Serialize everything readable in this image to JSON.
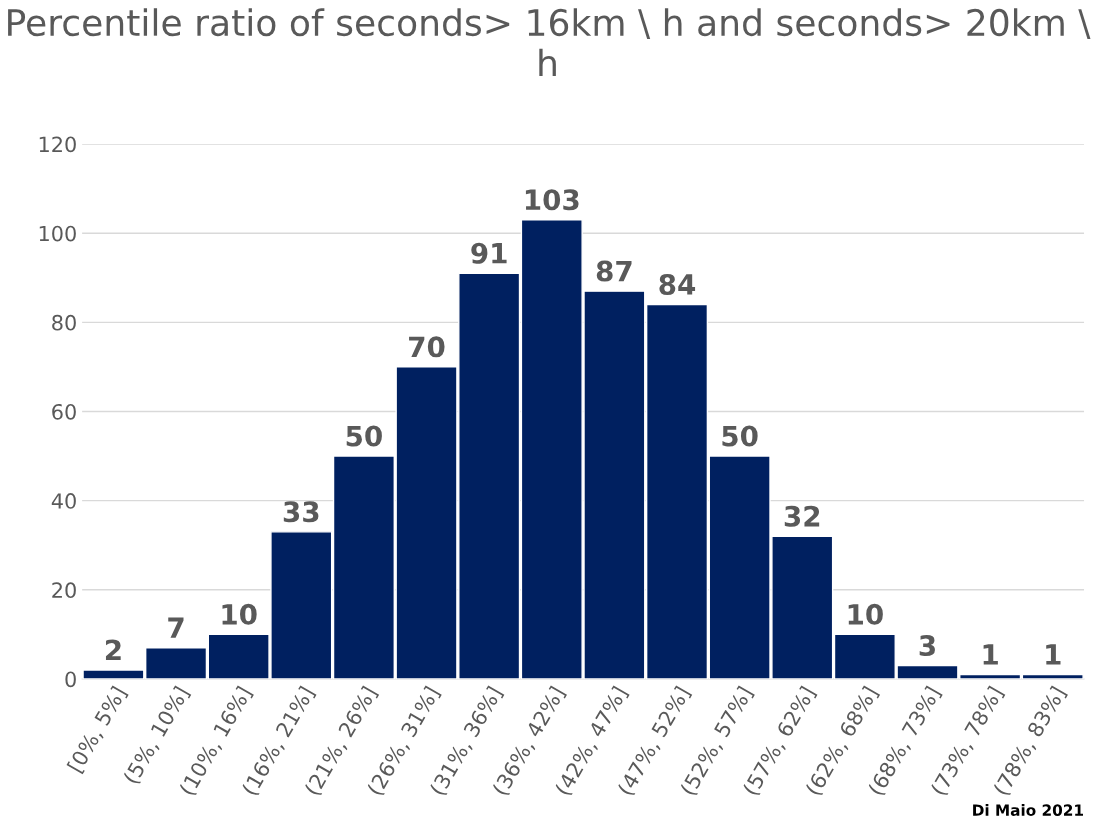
{
  "chart_data": {
    "type": "bar",
    "title": "Percentile ratio of seconds> 16km \\ h and seconds> 20km \\ h",
    "categories": [
      "[0%, 5%]",
      "(5%, 10%]",
      "(10%, 16%]",
      "(16%, 21%]",
      "(21%, 26%]",
      "(26%, 31%]",
      "(31%, 36%]",
      "(36%, 42%]",
      "(42%, 47%]",
      "(47%, 52%]",
      "(52%, 57%]",
      "(57%, 62%]",
      "(62%, 68%]",
      "(68%, 73%]",
      "(73%, 78%]",
      "(78%, 83%]"
    ],
    "values": [
      2,
      7,
      10,
      33,
      50,
      70,
      91,
      103,
      87,
      84,
      50,
      32,
      10,
      3,
      1,
      1
    ],
    "color": "#002060",
    "data_labels": true,
    "ylim": [
      0,
      120
    ],
    "yticks": [
      0,
      20,
      40,
      60,
      80,
      100,
      120
    ],
    "grid": "y",
    "annotations": [
      "Di Maio 2021"
    ]
  }
}
